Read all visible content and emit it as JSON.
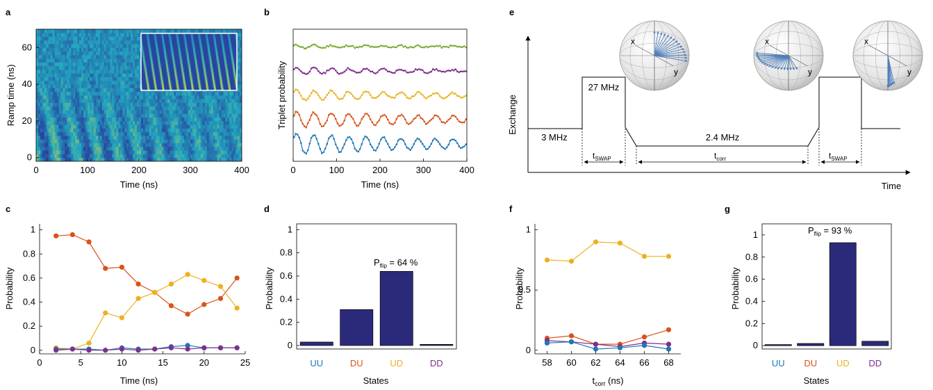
{
  "colors": {
    "blue": "#1f77b4",
    "orange": "#d95319",
    "yellow": "#edb120",
    "purple": "#7e2f8e",
    "green": "#77ac30",
    "bar": "#2b2a7a",
    "heat_low": "#2a3a9a",
    "heat_mid": "#22a8c0",
    "heat_high": "#f0d020"
  },
  "panels": {
    "a": {
      "label": "a"
    },
    "b": {
      "label": "b"
    },
    "c": {
      "label": "c"
    },
    "d": {
      "label": "d",
      "annotation_main": "P",
      "annotation_sub": "flip",
      "annotation_rest": " = 64 %"
    },
    "e": {
      "label": "e",
      "ylabel": "Exchange",
      "xlabel": "Time",
      "j_low": "3 MHz",
      "j_high": "27 MHz",
      "j_mid": "2.4 MHz",
      "tswap_main": "t",
      "tswap_sub": "SWAP",
      "tcorr_main": "t",
      "tcorr_sub": "corr",
      "sphere_x": "x",
      "sphere_y": "y"
    },
    "f": {
      "label": "f"
    },
    "g": {
      "label": "g",
      "annotation_main": "P",
      "annotation_sub": "flip",
      "annotation_rest": " = 93 %"
    }
  },
  "chart_data": [
    {
      "panel": "a",
      "type": "heatmap",
      "xlabel": "Time (ns)",
      "ylabel": "Ramp time (ns)",
      "xlim": [
        0,
        400
      ],
      "ylim": [
        -2,
        70
      ],
      "xticks": [
        0,
        100,
        200,
        300,
        400
      ],
      "yticks": [
        0,
        20,
        40,
        60
      ],
      "inset": "simulated fringe pattern"
    },
    {
      "panel": "b",
      "type": "line",
      "xlabel": "Time (ns)",
      "ylabel": "Triplet probability",
      "xlim": [
        0,
        400
      ],
      "xticks": [
        0,
        100,
        200,
        300,
        400
      ],
      "series": [
        {
          "color": "green",
          "offset": 4,
          "amplitude": 0.05,
          "period_ns": 40
        },
        {
          "color": "purple",
          "offset": 3,
          "amplitude": 0.1,
          "period_ns": 40
        },
        {
          "color": "yellow",
          "offset": 2,
          "amplitude": 0.17,
          "period_ns": 40
        },
        {
          "color": "orange",
          "offset": 1,
          "amplitude": 0.25,
          "period_ns": 40
        },
        {
          "color": "blue",
          "offset": 0,
          "amplitude": 0.33,
          "period_ns": 40
        }
      ]
    },
    {
      "panel": "c",
      "type": "line",
      "xlabel": "Time (ns)",
      "ylabel": "Probability",
      "xlim": [
        0,
        25
      ],
      "ylim": [
        -0.03,
        1.05
      ],
      "xticks": [
        0,
        5,
        10,
        15,
        20,
        25
      ],
      "yticks": [
        0,
        0.2,
        0.4,
        0.6,
        0.8,
        1
      ],
      "x": [
        2,
        4,
        6,
        8,
        10,
        12,
        14,
        16,
        18,
        20,
        22,
        24
      ],
      "series": [
        {
          "color": "orange",
          "values": [
            0.95,
            0.96,
            0.9,
            0.68,
            0.69,
            0.55,
            0.48,
            0.37,
            0.3,
            0.38,
            0.43,
            0.6
          ]
        },
        {
          "color": "yellow",
          "values": [
            0.02,
            0.01,
            0.06,
            0.31,
            0.27,
            0.43,
            0.48,
            0.55,
            0.63,
            0.58,
            0.53,
            0.35
          ]
        },
        {
          "color": "blue",
          "values": [
            0.01,
            0.01,
            0.01,
            0.0,
            0.02,
            0.01,
            0.01,
            0.03,
            0.04,
            0.02,
            0.02,
            0.02
          ]
        },
        {
          "color": "purple",
          "values": [
            0.0,
            0.01,
            0.0,
            0.0,
            0.01,
            0.0,
            0.01,
            0.02,
            0.01,
            0.02,
            0.02,
            0.02
          ]
        }
      ]
    },
    {
      "panel": "d",
      "type": "bar",
      "xlabel": "States",
      "ylabel": "Probability",
      "ylim": [
        -0.03,
        1.05
      ],
      "yticks": [
        0,
        0.2,
        0.4,
        0.6,
        0.8,
        1
      ],
      "categories": [
        "UU",
        "DU",
        "UD",
        "DD"
      ],
      "category_colors": [
        "blue",
        "orange",
        "yellow",
        "purple"
      ],
      "values": [
        0.03,
        0.31,
        0.64,
        0.01
      ]
    },
    {
      "panel": "f",
      "type": "line",
      "xlabel_main": "t",
      "xlabel_sub": "corr",
      "xlabel_rest": " (ns)",
      "ylabel": "Probability",
      "xlim": [
        57,
        69
      ],
      "ylim": [
        -0.03,
        1.05
      ],
      "xticks": [
        58,
        60,
        62,
        64,
        66,
        68
      ],
      "yticks": [
        0,
        0.5,
        1
      ],
      "x": [
        58,
        60,
        62,
        64,
        66,
        68
      ],
      "series": [
        {
          "color": "yellow",
          "values": [
            0.75,
            0.74,
            0.9,
            0.89,
            0.78,
            0.78
          ]
        },
        {
          "color": "orange",
          "values": [
            0.1,
            0.12,
            0.05,
            0.05,
            0.11,
            0.17
          ]
        },
        {
          "color": "purple",
          "values": [
            0.08,
            0.07,
            0.05,
            0.03,
            0.06,
            0.05
          ]
        },
        {
          "color": "blue",
          "values": [
            0.06,
            0.07,
            0.01,
            0.02,
            0.04,
            0.01
          ]
        }
      ]
    },
    {
      "panel": "g",
      "type": "bar",
      "xlabel": "States",
      "ylabel": "Probability",
      "ylim": [
        -0.03,
        1.1
      ],
      "yticks": [
        0,
        0.2,
        0.4,
        0.6,
        0.8,
        1
      ],
      "categories": [
        "UU",
        "DU",
        "UD",
        "DD"
      ],
      "category_colors": [
        "blue",
        "orange",
        "yellow",
        "purple"
      ],
      "values": [
        0.01,
        0.02,
        0.93,
        0.04
      ]
    }
  ]
}
